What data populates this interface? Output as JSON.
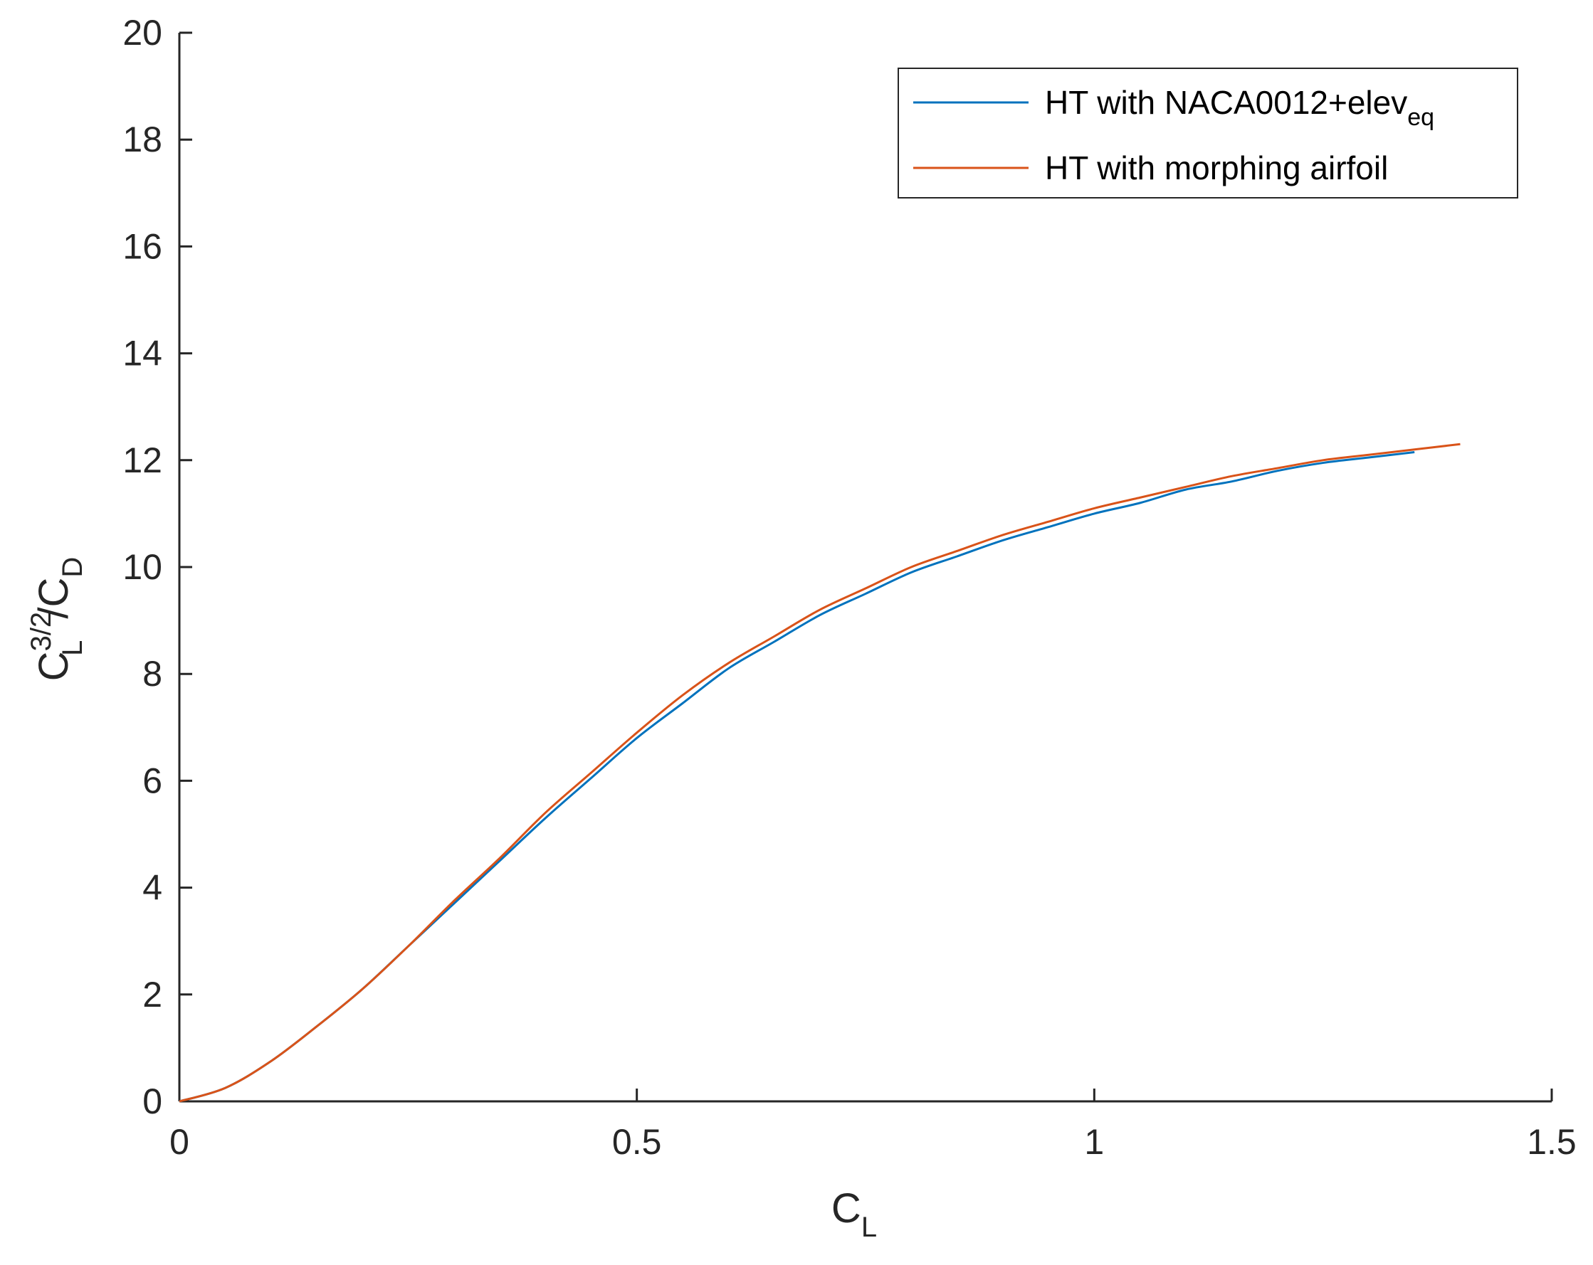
{
  "chart_data": {
    "type": "line",
    "xlabel": {
      "main": "C",
      "sub": "L"
    },
    "ylabel": {
      "main": "C",
      "sup": "3/2",
      "sub": "L",
      "tail": "/C",
      "tail_sub": "D"
    },
    "xlim": [
      0,
      1.5
    ],
    "ylim": [
      0,
      20
    ],
    "x_ticks": [
      0,
      0.5,
      1,
      1.5
    ],
    "x_tick_labels": [
      "0",
      "0.5",
      "1",
      "1.5"
    ],
    "y_ticks": [
      0,
      2,
      4,
      6,
      8,
      10,
      12,
      14,
      16,
      18,
      20
    ],
    "y_tick_labels": [
      "0",
      "2",
      "4",
      "6",
      "8",
      "10",
      "12",
      "14",
      "16",
      "18",
      "20"
    ],
    "grid": false,
    "legend_position": "top-right",
    "series": [
      {
        "name": "HT with NACA0012+elev",
        "name_sub": "eq",
        "color": "#0072BD",
        "x": [
          0,
          0.05,
          0.1,
          0.15,
          0.2,
          0.25,
          0.3,
          0.35,
          0.4,
          0.45,
          0.5,
          0.55,
          0.6,
          0.65,
          0.7,
          0.75,
          0.8,
          0.85,
          0.9,
          0.95,
          1.0,
          1.05,
          1.1,
          1.15,
          1.2,
          1.25,
          1.3,
          1.35
        ],
        "y": [
          0,
          0.25,
          0.75,
          1.4,
          2.1,
          2.9,
          3.7,
          4.5,
          5.3,
          6.05,
          6.8,
          7.45,
          8.1,
          8.6,
          9.1,
          9.5,
          9.9,
          10.2,
          10.5,
          10.75,
          11.0,
          11.2,
          11.45,
          11.6,
          11.8,
          11.95,
          12.05,
          12.15
        ]
      },
      {
        "name": "HT with morphing airfoil",
        "color": "#D95319",
        "x": [
          0,
          0.05,
          0.1,
          0.15,
          0.2,
          0.25,
          0.3,
          0.35,
          0.4,
          0.45,
          0.5,
          0.55,
          0.6,
          0.65,
          0.7,
          0.75,
          0.8,
          0.85,
          0.9,
          0.95,
          1.0,
          1.05,
          1.1,
          1.15,
          1.2,
          1.25,
          1.3,
          1.35,
          1.4
        ],
        "y": [
          0,
          0.25,
          0.75,
          1.4,
          2.1,
          2.9,
          3.75,
          4.55,
          5.4,
          6.15,
          6.9,
          7.6,
          8.2,
          8.7,
          9.2,
          9.6,
          10.0,
          10.3,
          10.6,
          10.85,
          11.1,
          11.3,
          11.5,
          11.7,
          11.85,
          12.0,
          12.1,
          12.2,
          12.3
        ]
      }
    ]
  }
}
